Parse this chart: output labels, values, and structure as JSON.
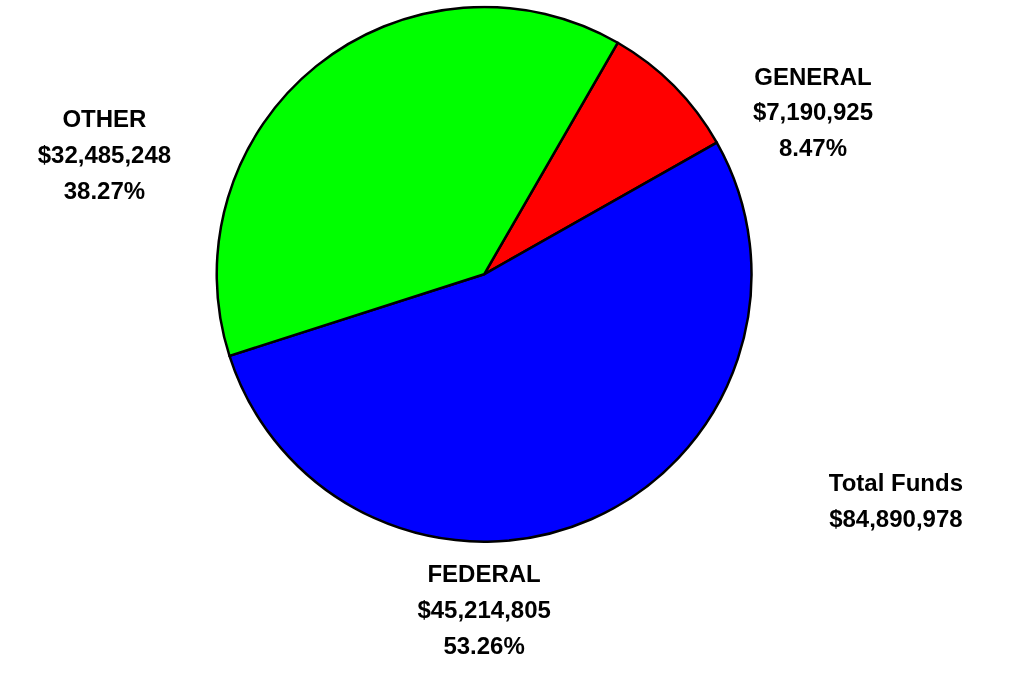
{
  "chart_data": {
    "type": "pie",
    "categories": [
      "GENERAL",
      "FEDERAL",
      "OTHER"
    ],
    "values": [
      7190925,
      45214805,
      32485248
    ],
    "colors": [
      "#ff0000",
      "#0000ff",
      "#00ff00"
    ],
    "value_labels": [
      "$7,190,925\n8.47%",
      "$45,214,805\n53.26%",
      "$32,485,248\n38.27%"
    ],
    "annotations": [
      {
        "text": "Total Funds\n$84,890,978"
      }
    ]
  }
}
